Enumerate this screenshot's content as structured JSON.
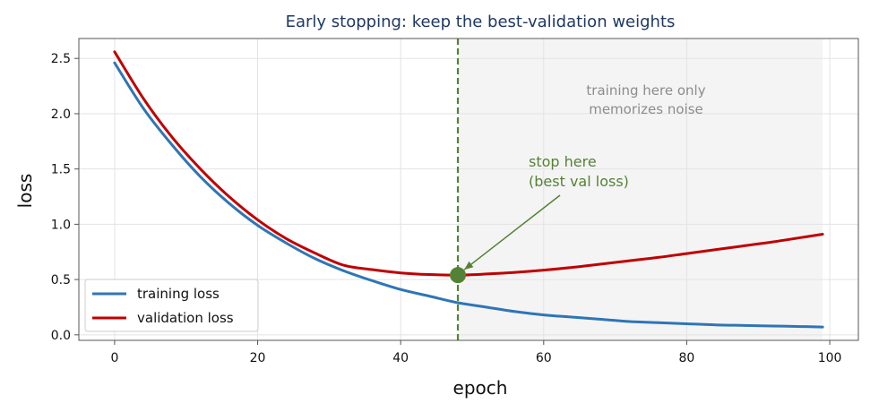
{
  "chart_data": {
    "type": "line",
    "title": "Early stopping: keep the best-validation weights",
    "xlabel": "epoch",
    "ylabel": "loss",
    "xlim": [
      -5,
      104
    ],
    "ylim": [
      -0.05,
      2.68
    ],
    "xticks": [
      "0",
      "20",
      "40",
      "60",
      "80",
      "100"
    ],
    "yticks": [
      "0.0",
      "0.5",
      "1.0",
      "1.5",
      "2.0",
      "2.5"
    ],
    "grid": true,
    "legend_position": "lower-left",
    "series": [
      {
        "name": "training loss",
        "color": "#2e75b6",
        "x": [
          0,
          4,
          8,
          12,
          16,
          20,
          24,
          28,
          32,
          36,
          40,
          44,
          48,
          52,
          56,
          60,
          64,
          68,
          72,
          76,
          80,
          84,
          88,
          92,
          96,
          99
        ],
        "y": [
          2.46,
          2.05,
          1.72,
          1.43,
          1.19,
          0.99,
          0.83,
          0.69,
          0.58,
          0.49,
          0.41,
          0.35,
          0.29,
          0.25,
          0.21,
          0.18,
          0.16,
          0.14,
          0.12,
          0.11,
          0.1,
          0.09,
          0.085,
          0.08,
          0.075,
          0.07
        ]
      },
      {
        "name": "validation loss",
        "color": "#c00000",
        "x": [
          0,
          4,
          8,
          12,
          16,
          20,
          24,
          28,
          32,
          36,
          40,
          44,
          48,
          52,
          56,
          60,
          64,
          68,
          72,
          76,
          80,
          84,
          88,
          92,
          96,
          99
        ],
        "y": [
          2.56,
          2.14,
          1.79,
          1.5,
          1.25,
          1.04,
          0.87,
          0.74,
          0.63,
          0.59,
          0.56,
          0.545,
          0.54,
          0.55,
          0.565,
          0.585,
          0.61,
          0.64,
          0.67,
          0.7,
          0.735,
          0.77,
          0.805,
          0.84,
          0.88,
          0.91
        ]
      }
    ],
    "stop_epoch": 48,
    "stop_value": 0.54,
    "stop_color": "#548235",
    "overfit_region": {
      "from": 48,
      "to": 99,
      "color": "#f4f4f4"
    },
    "annotations": {
      "stop_line1": "stop here",
      "stop_line2": "(best val loss)",
      "region_line1": "training here only",
      "region_line2": "memorizes noise"
    },
    "title_color": "#1f3864",
    "region_text_color": "#8c8c8c"
  }
}
